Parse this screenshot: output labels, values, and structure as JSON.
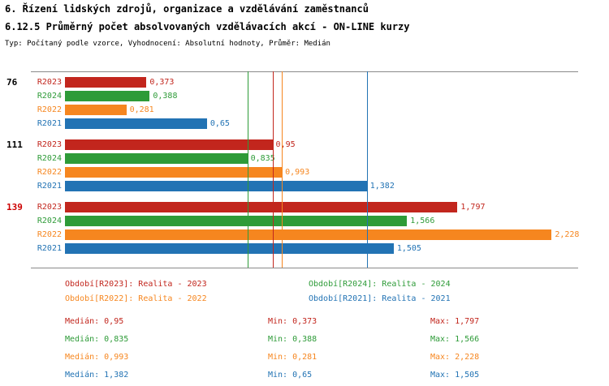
{
  "header": {
    "title": "6. Řízení lidských zdrojů, organizace a vzdělávání zaměstnanců",
    "subtitle": "6.12.5 Průměrný počet absolvovaných vzdělávacích akcí - ON-LINE kurzy",
    "meta": "Typ: Počítaný podle vzorce, Vyhodnocení: Absolutní hodnoty, Průměr: Medián"
  },
  "colors": {
    "r2023": "#c2261d",
    "r2024": "#2e9b38",
    "r2022": "#f6861f",
    "r2021": "#2273b4",
    "highlight_group": "#cc0000",
    "axis": "#8a8a8a"
  },
  "chart_data": {
    "type": "bar",
    "orientation": "horizontal",
    "value_axis": {
      "min": 0,
      "max": 2.5,
      "gridlines": false
    },
    "legend_position": "bottom",
    "series": [
      {
        "name": "R2023",
        "color": "#c2261d",
        "median": 0.95,
        "median_label": "0,95"
      },
      {
        "name": "R2024",
        "color": "#2e9b38",
        "median": 0.835,
        "median_label": "0,835"
      },
      {
        "name": "R2022",
        "color": "#f6861f",
        "median": 0.993,
        "median_label": "0,993"
      },
      {
        "name": "R2021",
        "color": "#2273b4",
        "median": 1.382,
        "median_label": "1,382"
      }
    ],
    "groups": [
      {
        "label": "76",
        "label_color": "#000000",
        "bars": [
          {
            "series": "R2023",
            "value": 0.373,
            "value_label": "0,373"
          },
          {
            "series": "R2024",
            "value": 0.388,
            "value_label": "0,388"
          },
          {
            "series": "R2022",
            "value": 0.281,
            "value_label": "0,281"
          },
          {
            "series": "R2021",
            "value": 0.65,
            "value_label": "0,65"
          }
        ]
      },
      {
        "label": "111",
        "label_color": "#000000",
        "bars": [
          {
            "series": "R2023",
            "value": 0.95,
            "value_label": "0,95"
          },
          {
            "series": "R2024",
            "value": 0.835,
            "value_label": "0,835"
          },
          {
            "series": "R2022",
            "value": 0.993,
            "value_label": "0,993"
          },
          {
            "series": "R2021",
            "value": 1.382,
            "value_label": "1,382"
          }
        ]
      },
      {
        "label": "139",
        "label_color": "#cc0000",
        "bars": [
          {
            "series": "R2023",
            "value": 1.797,
            "value_label": "1,797"
          },
          {
            "series": "R2024",
            "value": 1.566,
            "value_label": "1,566"
          },
          {
            "series": "R2022",
            "value": 2.228,
            "value_label": "2,228"
          },
          {
            "series": "R2021",
            "value": 1.505,
            "value_label": "1,505"
          }
        ]
      }
    ]
  },
  "legend": {
    "items": [
      {
        "text": "Období[R2023]: Realita - 2023",
        "color": "#c2261d"
      },
      {
        "text": "Období[R2024]: Realita - 2024",
        "color": "#2e9b38"
      },
      {
        "text": "Období[R2022]: Realita - 2022",
        "color": "#f6861f"
      },
      {
        "text": "Období[R2021]: Realita - 2021",
        "color": "#2273b4"
      }
    ]
  },
  "stats": {
    "rows": [
      {
        "color": "#c2261d",
        "median": "Medián: 0,95",
        "min": "Min: 0,373",
        "max": "Max: 1,797"
      },
      {
        "color": "#2e9b38",
        "median": "Medián: 0,835",
        "min": "Min: 0,388",
        "max": "Max: 1,566"
      },
      {
        "color": "#f6861f",
        "median": "Medián: 0,993",
        "min": "Min: 0,281",
        "max": "Max: 2,228"
      },
      {
        "color": "#2273b4",
        "median": "Medián: 1,382",
        "min": "Min: 0,65",
        "max": "Max: 1,505"
      }
    ]
  }
}
